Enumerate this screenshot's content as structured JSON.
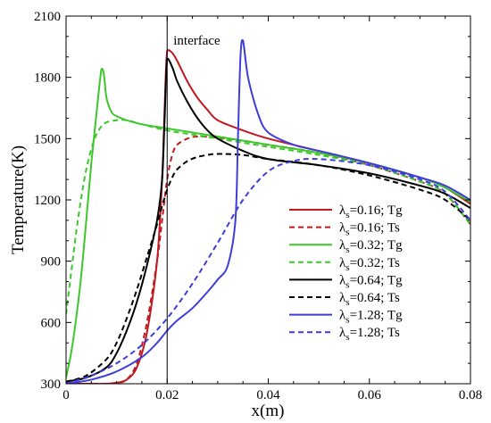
{
  "chart_data": {
    "type": "line",
    "title": "",
    "xlabel": "x(m)",
    "ylabel": "Temperature(K)",
    "xlim": [
      0,
      0.08
    ],
    "ylim": [
      300,
      2100
    ],
    "xticks": [
      0,
      0.02,
      0.04,
      0.06,
      0.08
    ],
    "xtick_labels": [
      "0",
      "0.02",
      "0.04",
      "0.06",
      "0.08"
    ],
    "yticks": [
      300,
      600,
      900,
      1200,
      1500,
      1800,
      2100
    ],
    "ytick_labels": [
      "300",
      "600",
      "900",
      "1200",
      "1500",
      "1800",
      "2100"
    ],
    "grid": false,
    "legend_position": "lower-right",
    "annotations": [
      {
        "text": "interface",
        "x": 0.02
      }
    ],
    "series": [
      {
        "name": "λs=0.16; Tg",
        "sub": "s",
        "suffix": "=0.16; Tg",
        "color": "#c0191f",
        "dash": "solid",
        "x": [
          0,
          0.004,
          0.008,
          0.01,
          0.012,
          0.014,
          0.016,
          0.018,
          0.019,
          0.0195,
          0.02,
          0.021,
          0.022,
          0.024,
          0.026,
          0.028,
          0.03,
          0.035,
          0.04,
          0.05,
          0.06,
          0.07,
          0.075,
          0.08
        ],
        "y": [
          300,
          300,
          300,
          305,
          320,
          380,
          550,
          900,
          1300,
          1650,
          1930,
          1920,
          1880,
          1780,
          1700,
          1640,
          1590,
          1540,
          1500,
          1440,
          1380,
          1310,
          1260,
          1180
        ]
      },
      {
        "name": "λs=0.16; Ts",
        "sub": "s",
        "suffix": "=0.16; Ts",
        "color": "#c0191f",
        "dash": "dashed",
        "x": [
          0,
          0.004,
          0.008,
          0.01,
          0.012,
          0.014,
          0.016,
          0.018,
          0.019,
          0.02,
          0.021,
          0.022,
          0.024,
          0.026,
          0.03,
          0.035,
          0.04,
          0.05,
          0.06,
          0.07,
          0.075,
          0.08
        ],
        "y": [
          300,
          300,
          300,
          305,
          320,
          400,
          600,
          900,
          1100,
          1300,
          1420,
          1470,
          1500,
          1510,
          1505,
          1490,
          1470,
          1430,
          1370,
          1290,
          1230,
          1080
        ]
      },
      {
        "name": "λs=0.32; Tg",
        "sub": "s",
        "suffix": "=0.32; Tg",
        "color": "#3cc82b",
        "dash": "solid",
        "x": [
          0,
          0.001,
          0.002,
          0.003,
          0.004,
          0.005,
          0.006,
          0.007,
          0.0075,
          0.008,
          0.009,
          0.01,
          0.012,
          0.015,
          0.02,
          0.025,
          0.03,
          0.04,
          0.05,
          0.06,
          0.07,
          0.075,
          0.08
        ],
        "y": [
          330,
          450,
          620,
          830,
          1100,
          1380,
          1620,
          1840,
          1810,
          1700,
          1630,
          1610,
          1590,
          1570,
          1550,
          1530,
          1510,
          1470,
          1430,
          1380,
          1310,
          1260,
          1190
        ]
      },
      {
        "name": "λs=0.32; Ts",
        "sub": "s",
        "suffix": "=0.32; Ts",
        "color": "#3cc82b",
        "dash": "dashed",
        "x": [
          0,
          0.001,
          0.002,
          0.003,
          0.004,
          0.005,
          0.006,
          0.007,
          0.008,
          0.01,
          0.012,
          0.015,
          0.02,
          0.025,
          0.03,
          0.04,
          0.05,
          0.06,
          0.07,
          0.075,
          0.08
        ],
        "y": [
          640,
          840,
          1040,
          1210,
          1350,
          1450,
          1520,
          1560,
          1580,
          1590,
          1590,
          1570,
          1540,
          1520,
          1500,
          1460,
          1420,
          1370,
          1290,
          1230,
          1080
        ]
      },
      {
        "name": "λs=0.64; Tg",
        "sub": "s",
        "suffix": "=0.64; Tg",
        "color": "#000000",
        "dash": "solid",
        "x": [
          0,
          0.004,
          0.008,
          0.01,
          0.012,
          0.014,
          0.016,
          0.018,
          0.019,
          0.0195,
          0.02,
          0.021,
          0.022,
          0.024,
          0.026,
          0.028,
          0.03,
          0.035,
          0.04,
          0.05,
          0.06,
          0.07,
          0.075,
          0.08
        ],
        "y": [
          310,
          330,
          380,
          450,
          560,
          700,
          880,
          1100,
          1300,
          1600,
          1890,
          1850,
          1780,
          1680,
          1600,
          1540,
          1500,
          1440,
          1400,
          1370,
          1330,
          1270,
          1230,
          1160
        ]
      },
      {
        "name": "λs=0.64; Ts",
        "sub": "s",
        "suffix": "=0.64; Ts",
        "color": "#000000",
        "dash": "dashed",
        "x": [
          0,
          0.004,
          0.008,
          0.01,
          0.012,
          0.014,
          0.016,
          0.018,
          0.019,
          0.02,
          0.021,
          0.022,
          0.024,
          0.026,
          0.028,
          0.03,
          0.035,
          0.04,
          0.05,
          0.06,
          0.07,
          0.075,
          0.08
        ],
        "y": [
          310,
          340,
          420,
          500,
          620,
          760,
          920,
          1080,
          1170,
          1250,
          1310,
          1350,
          1390,
          1410,
          1420,
          1425,
          1420,
          1400,
          1370,
          1320,
          1250,
          1200,
          1100
        ]
      },
      {
        "name": "λs=1.28; Tg",
        "sub": "s",
        "suffix": "=1.28; Tg",
        "color": "#3d3ddb",
        "dash": "solid",
        "x": [
          0,
          0.005,
          0.01,
          0.015,
          0.018,
          0.02,
          0.022,
          0.025,
          0.028,
          0.03,
          0.032,
          0.0335,
          0.034,
          0.0345,
          0.035,
          0.036,
          0.038,
          0.04,
          0.045,
          0.05,
          0.06,
          0.07,
          0.075,
          0.08
        ],
        "y": [
          300,
          320,
          360,
          430,
          500,
          560,
          610,
          670,
          750,
          810,
          880,
          1100,
          1500,
          1900,
          1980,
          1800,
          1620,
          1530,
          1470,
          1440,
          1380,
          1310,
          1270,
          1200
        ]
      },
      {
        "name": "λs=1.28; Ts",
        "sub": "s",
        "suffix": "=1.28; Ts",
        "color": "#3d3ddb",
        "dash": "dashed",
        "x": [
          0,
          0.005,
          0.01,
          0.015,
          0.02,
          0.025,
          0.03,
          0.035,
          0.04,
          0.045,
          0.05,
          0.06,
          0.07,
          0.075,
          0.08
        ],
        "y": [
          300,
          340,
          400,
          490,
          620,
          790,
          990,
          1200,
          1340,
          1390,
          1400,
          1370,
          1300,
          1240,
          1100
        ]
      }
    ]
  }
}
